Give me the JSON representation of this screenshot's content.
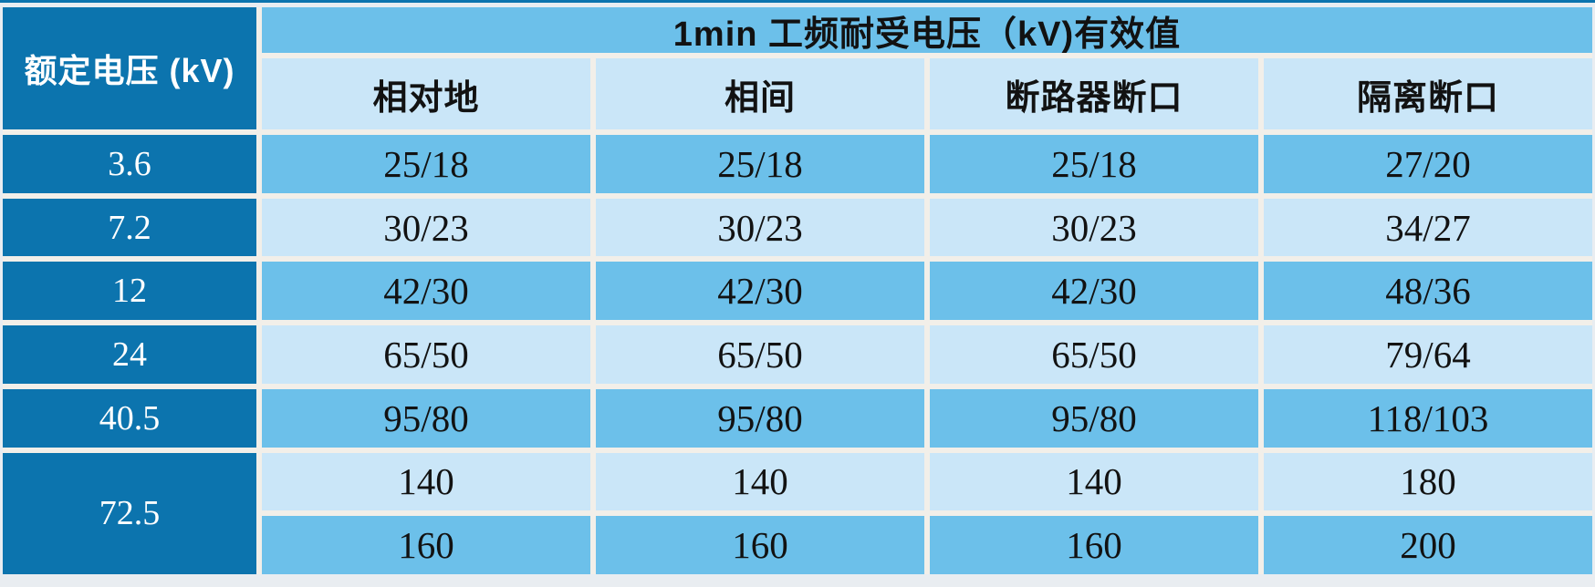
{
  "colors": {
    "dark_blue": "#0C74AE",
    "medium_blue": "#6CC0EA",
    "light_blue": "#CAE6F8",
    "gutter_white": "#F2EFE9",
    "page_background": "#E9EDF1",
    "text_dark": "#121212",
    "text_white": "#FFFFFF"
  },
  "chart_data": {
    "type": "table",
    "title": "1min 工频耐受电压（kV)有效值",
    "row_header_label": "额定电压 (kV)",
    "columns": [
      "相对地",
      "相间",
      "断路器断口",
      "隔离断口"
    ],
    "rows": [
      {
        "rated_voltage": "3.6",
        "values": [
          "25/18",
          "25/18",
          "25/18",
          "27/20"
        ]
      },
      {
        "rated_voltage": "7.2",
        "values": [
          "30/23",
          "30/23",
          "30/23",
          "34/27"
        ]
      },
      {
        "rated_voltage": "12",
        "values": [
          "42/30",
          "42/30",
          "42/30",
          "48/36"
        ]
      },
      {
        "rated_voltage": "24",
        "values": [
          "65/50",
          "65/50",
          "65/50",
          "79/64"
        ]
      },
      {
        "rated_voltage": "40.5",
        "values": [
          "95/80",
          "95/80",
          "95/80",
          "118/103"
        ]
      },
      {
        "rated_voltage": "72.5",
        "rowspan": 2,
        "values": [
          "140",
          "140",
          "140",
          "180"
        ]
      },
      {
        "rated_voltage": "72.5",
        "merged_with_above": true,
        "values": [
          "160",
          "160",
          "160",
          "200"
        ]
      }
    ],
    "layout": {
      "row_shading_order": [
        "medium",
        "light",
        "medium",
        "light",
        "medium",
        "light",
        "medium"
      ],
      "header_fill": "medium_blue",
      "subheader_fill": "light_blue",
      "row_header_fill": "dark_blue"
    }
  }
}
